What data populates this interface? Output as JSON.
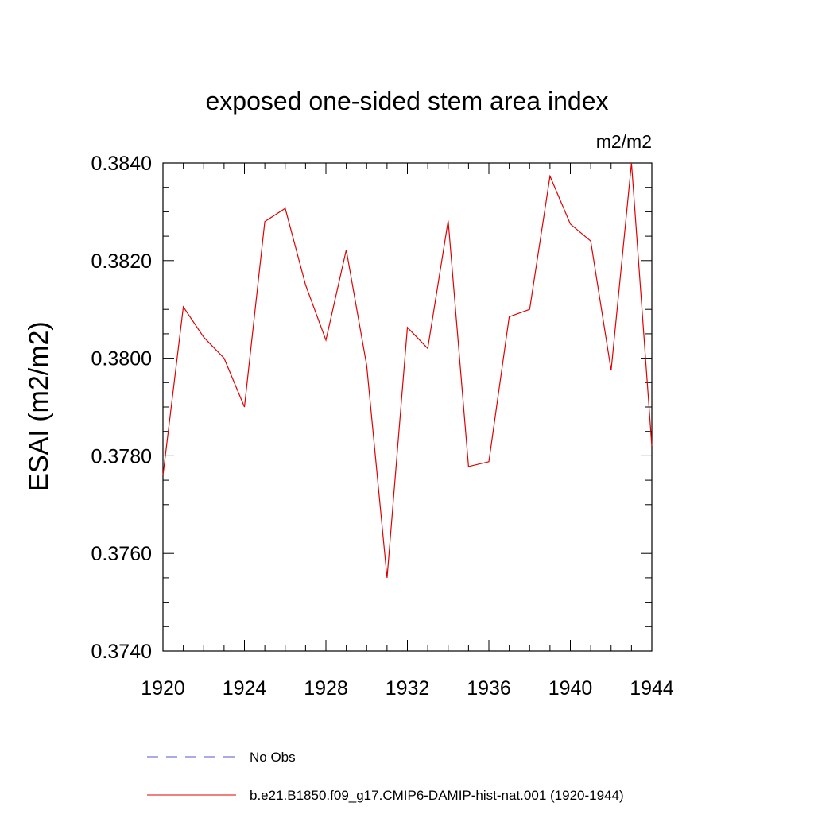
{
  "chart_data": {
    "type": "line",
    "title": "exposed one-sided stem area index",
    "units_label": "m2/m2",
    "ylabel": "ESAI  (m2/m2)",
    "xlabel": "",
    "xlim": [
      1920,
      1944
    ],
    "ylim": [
      0.374,
      0.384
    ],
    "x_ticks": [
      "1920",
      "1924",
      "1928",
      "1932",
      "1936",
      "1940",
      "1944"
    ],
    "y_ticks": [
      "0.3740",
      "0.3760",
      "0.3780",
      "0.3800",
      "0.3820",
      "0.3840"
    ],
    "grid": false,
    "legend_placement": "bottom",
    "series": [
      {
        "name": "No Obs",
        "color": "#5555cc",
        "dash": "dashed",
        "x": [],
        "values": []
      },
      {
        "name": "b.e21.B1850.f09_g17.CMIP6-DAMIP-hist-nat.001 (1920-1944)",
        "color": "#e00000",
        "dash": "solid",
        "x": [
          1920,
          1921,
          1922,
          1923,
          1924,
          1925,
          1926,
          1927,
          1928,
          1929,
          1930,
          1931,
          1932,
          1933,
          1934,
          1935,
          1936,
          1937,
          1938,
          1939,
          1940,
          1941,
          1942,
          1943,
          1944
        ],
        "values": [
          0.3776,
          0.38105,
          0.38043,
          0.38,
          0.379,
          0.3828,
          0.38307,
          0.3815,
          0.38037,
          0.38222,
          0.37985,
          0.3755,
          0.38063,
          0.3802,
          0.38282,
          0.37778,
          0.37788,
          0.38085,
          0.381,
          0.38373,
          0.38275,
          0.3824,
          0.37975,
          0.384,
          0.3782
        ]
      }
    ]
  }
}
